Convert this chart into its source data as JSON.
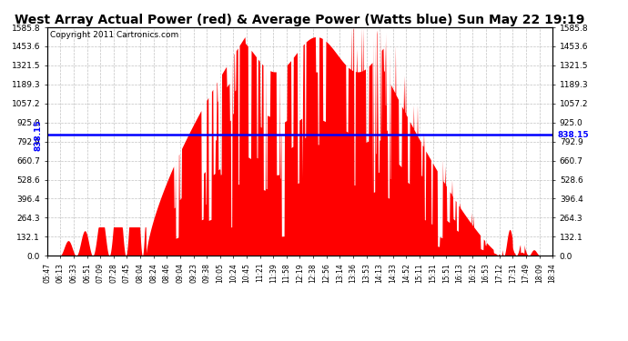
{
  "title": "West Array Actual Power (red) & Average Power (Watts blue) Sun May 22 19:19",
  "copyright": "Copyright 2011 Cartronics.com",
  "avg_power": 838.15,
  "ymax": 1585.8,
  "yticks": [
    0.0,
    132.1,
    264.3,
    396.4,
    528.6,
    660.7,
    792.9,
    925.0,
    1057.2,
    1189.3,
    1321.5,
    1453.6,
    1585.8
  ],
  "x_labels": [
    "05:47",
    "06:13",
    "06:33",
    "06:51",
    "07:09",
    "07:28",
    "07:45",
    "08:04",
    "08:24",
    "08:46",
    "09:04",
    "09:23",
    "09:38",
    "10:05",
    "10:24",
    "10:45",
    "11:21",
    "11:39",
    "11:58",
    "12:19",
    "12:38",
    "12:56",
    "13:14",
    "13:36",
    "13:53",
    "14:13",
    "14:33",
    "14:52",
    "15:11",
    "15:31",
    "15:51",
    "16:13",
    "16:32",
    "16:53",
    "17:12",
    "17:31",
    "17:49",
    "18:09",
    "18:34"
  ],
  "bar_color": "#FF0000",
  "line_color": "#0000FF",
  "bg_color": "#FFFFFF",
  "grid_color": "#BBBBBB",
  "title_fontsize": 10,
  "copyright_fontsize": 6.5,
  "tick_fontsize": 6.5,
  "xlabel_fontsize": 5.5
}
